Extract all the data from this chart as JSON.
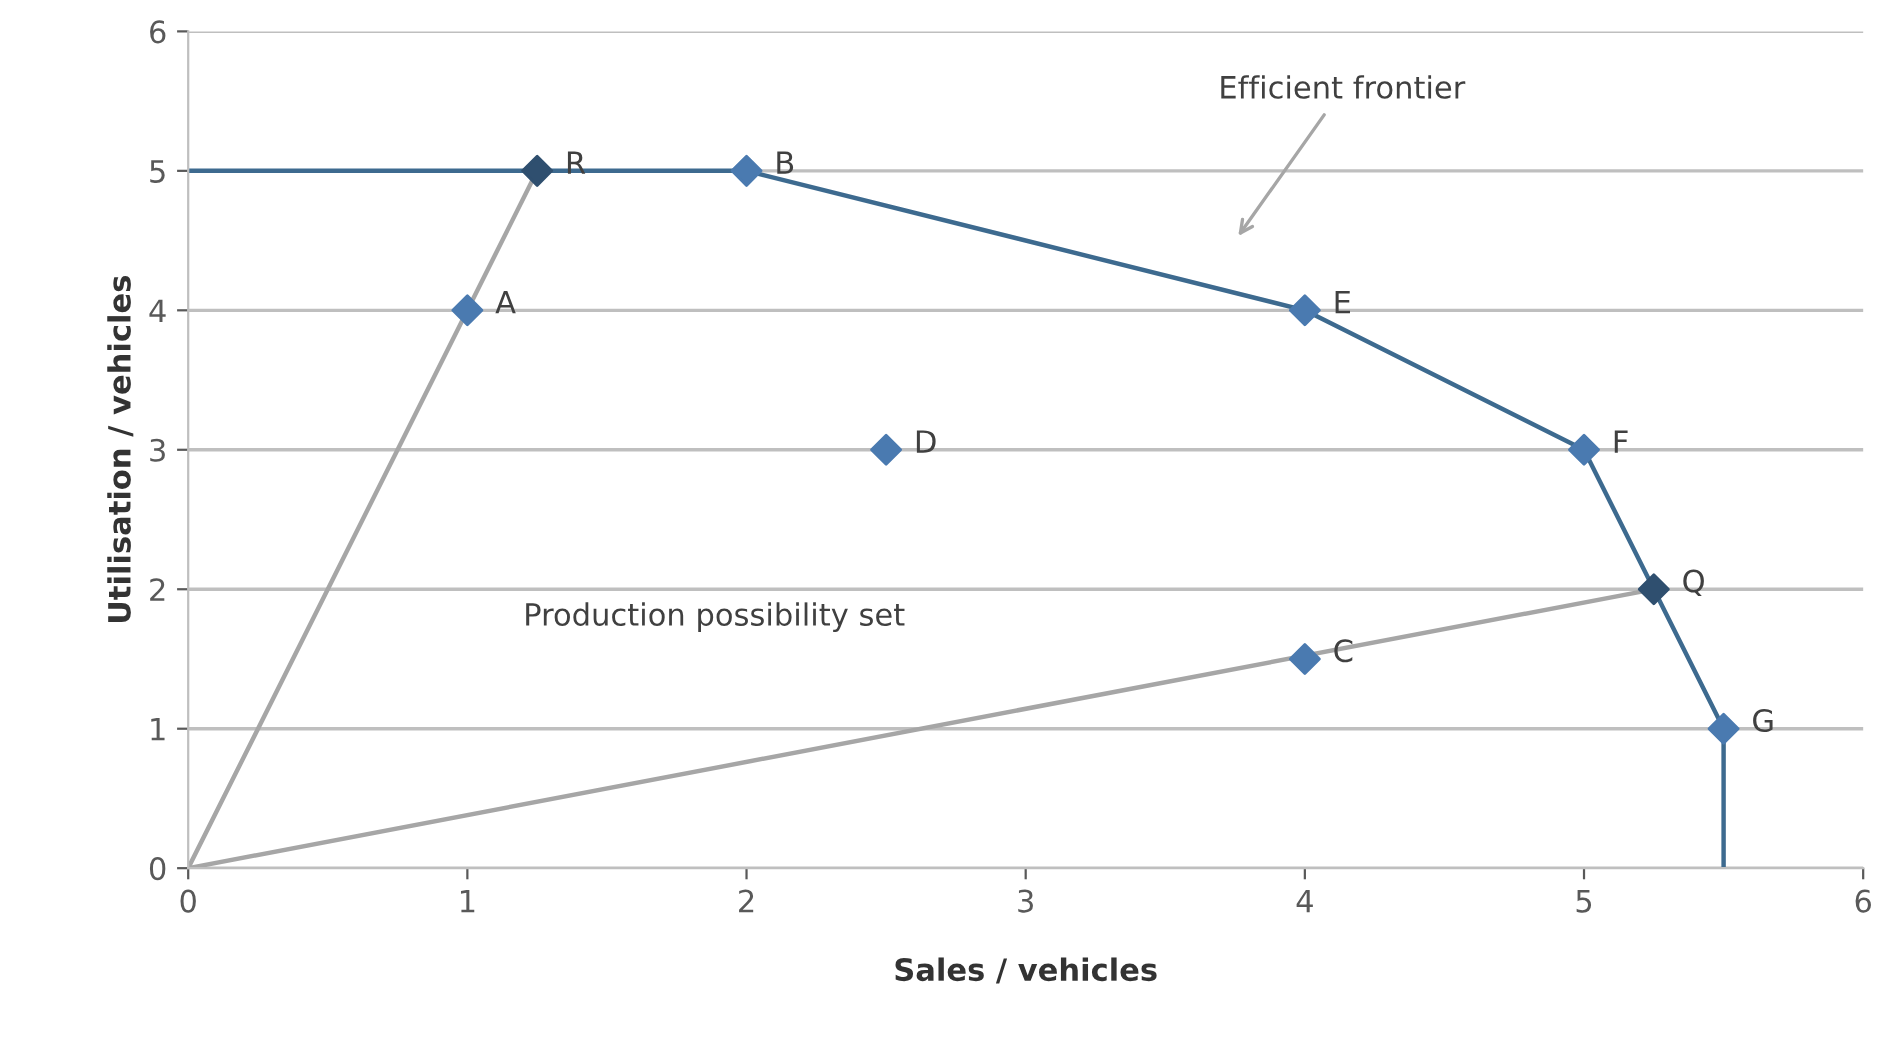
{
  "chart_data": {
    "type": "line",
    "xlabel": "Sales / vehicles",
    "ylabel": "Utilisation / vehicles",
    "xlim": [
      0,
      6
    ],
    "ylim": [
      0,
      6
    ],
    "xticks": [
      0,
      1,
      2,
      3,
      4,
      5,
      6
    ],
    "yticks": [
      0,
      1,
      2,
      3,
      4,
      5,
      6
    ],
    "grid": "y",
    "series": [
      {
        "color": "#a6a6a6",
        "x": [
          0,
          1.25
        ],
        "values": [
          0,
          5
        ],
        "marker": "none"
      },
      {
        "color": "#a6a6a6",
        "x": [
          0,
          5.25
        ],
        "values": [
          0,
          2
        ],
        "marker": "none"
      },
      {
        "color": "#3d6a8f",
        "x": [
          0,
          1.25,
          2,
          4,
          5,
          5.25,
          5.5,
          5.5
        ],
        "values": [
          5,
          5,
          5,
          4,
          3,
          2,
          1,
          0
        ],
        "marker": "none"
      },
      {
        "type": "scatter",
        "marker": "diamond",
        "x": [
          1.25,
          2,
          1,
          4,
          2.5,
          5,
          5.25,
          4,
          5.5
        ],
        "values": [
          5,
          5,
          4,
          4,
          3,
          3,
          2,
          1.5,
          1
        ],
        "colors": [
          "#2f4f6f",
          "#4a7ab0",
          "#4a7ab0",
          "#4a7ab0",
          "#4a7ab0",
          "#4a7ab0",
          "#2f4f6f",
          "#4a7ab0",
          "#4a7ab0"
        ]
      }
    ],
    "annotations": [
      {
        "text": "R",
        "x": 1.25,
        "y": 5
      },
      {
        "text": "B",
        "x": 2,
        "y": 5
      },
      {
        "text": "A",
        "x": 1,
        "y": 4
      },
      {
        "text": "E",
        "x": 4,
        "y": 4
      },
      {
        "text": "D",
        "x": 2.5,
        "y": 3
      },
      {
        "text": "F",
        "x": 5,
        "y": 3
      },
      {
        "text": "Q",
        "x": 5.25,
        "y": 2
      },
      {
        "text": "C",
        "x": 4,
        "y": 1.5
      },
      {
        "text": "G",
        "x": 5.5,
        "y": 1
      },
      "Efficient frontier",
      "Production possibility set"
    ]
  }
}
